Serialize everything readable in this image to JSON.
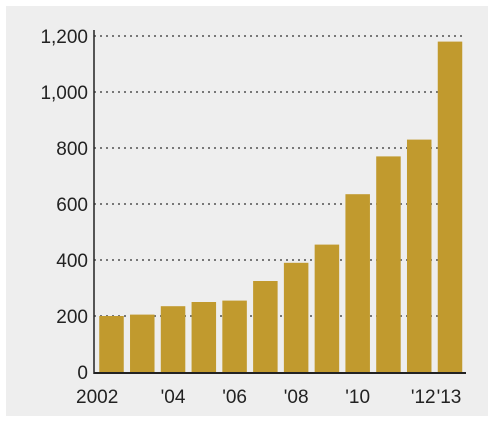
{
  "chart_data": {
    "type": "bar",
    "title": "",
    "xlabel": "",
    "ylabel": "",
    "categories": [
      "2002",
      "2003",
      "2004",
      "2005",
      "2006",
      "2007",
      "2008",
      "2009",
      "2010",
      "2011",
      "2012",
      "2013"
    ],
    "x_tick_labels": [
      "2002",
      "",
      "'04",
      "",
      "'06",
      "",
      "'08",
      "",
      "'10",
      "",
      "'12",
      "'13"
    ],
    "values": [
      200,
      205,
      235,
      250,
      255,
      325,
      390,
      455,
      635,
      770,
      830,
      1180
    ],
    "y_ticks": [
      0,
      200,
      400,
      600,
      800,
      1000,
      1200
    ],
    "y_tick_labels": [
      "0",
      "200",
      "400",
      "600",
      "800",
      "1,000",
      "1,200"
    ],
    "ylim": [
      0,
      1200
    ],
    "grid": "horizontal dotted",
    "colors": {
      "bar": "#c19a2e",
      "grid": "#777777",
      "background": "#eeeeee"
    }
  }
}
